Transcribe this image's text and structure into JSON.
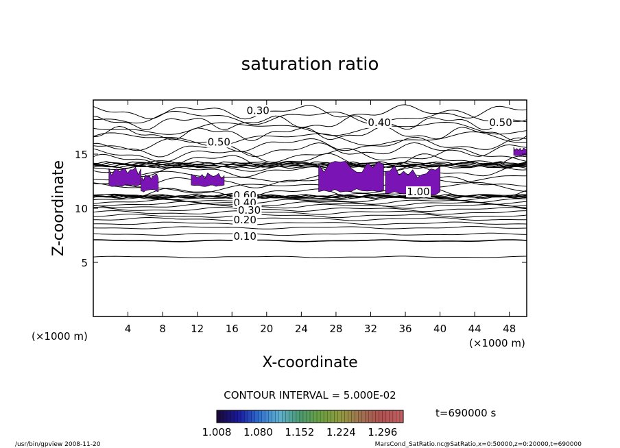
{
  "chart_data": {
    "type": "contour",
    "title": "saturation ratio",
    "xlabel": "X-coordinate",
    "ylabel": "Z-coordinate",
    "x_unit": "(×1000 m)",
    "y_unit": "(×1000 m)",
    "xlim": [
      0,
      50
    ],
    "ylim": [
      0,
      20
    ],
    "x_ticks": [
      4,
      8,
      12,
      16,
      20,
      24,
      28,
      32,
      36,
      40,
      44,
      48
    ],
    "y_ticks": [
      5,
      10,
      15
    ],
    "contour_interval_text": "CONTOUR INTERVAL = 5.000E-02",
    "contour_labels": [
      {
        "text": "0.30",
        "x": 19,
        "z": 18.7
      },
      {
        "text": "0.40",
        "x": 33,
        "z": 17.6
      },
      {
        "text": "0.50",
        "x": 47,
        "z": 17.6
      },
      {
        "text": "0.50",
        "x": 14.5,
        "z": 15.8
      },
      {
        "text": "1.00",
        "x": 37.5,
        "z": 11.2
      },
      {
        "text": "0.60",
        "x": 17.5,
        "z": 10.9
      },
      {
        "text": "0.40",
        "x": 17.5,
        "z": 10.2
      },
      {
        "text": "0.30",
        "x": 18,
        "z": 9.5
      },
      {
        "text": "0.20",
        "x": 17.5,
        "z": 8.6
      },
      {
        "text": "0.10",
        "x": 17.5,
        "z": 7.1
      }
    ],
    "contour_levels_z": [
      5.5,
      7.0,
      7.6,
      8.2,
      8.6,
      9.0,
      9.3,
      9.6,
      9.9,
      10.2,
      10.4,
      10.6,
      10.8,
      11.0,
      11.1
    ],
    "supersaturated_regions": [
      {
        "x_range": [
          1.8,
          5.5
        ],
        "z_range": [
          12.0,
          13.6
        ]
      },
      {
        "x_range": [
          5.5,
          7.5
        ],
        "z_range": [
          11.5,
          13.1
        ]
      },
      {
        "x_range": [
          11.3,
          15.1
        ],
        "z_range": [
          12.0,
          13.1
        ]
      },
      {
        "x_range": [
          26.0,
          33.5
        ],
        "z_range": [
          11.5,
          14.0
        ]
      },
      {
        "x_range": [
          33.7,
          40.0
        ],
        "z_range": [
          11.2,
          13.6
        ]
      },
      {
        "x_range": [
          48.5,
          50.0
        ],
        "z_range": [
          14.8,
          15.6
        ]
      }
    ],
    "colorbar": {
      "tick_labels": [
        "1.008",
        "1.080",
        "1.152",
        "1.224",
        "1.296"
      ],
      "min": 1.008,
      "max": 1.332,
      "colors": [
        "#1a0a3a",
        "#1a1aa0",
        "#2f6fd0",
        "#5fb0d0",
        "#4a9a70",
        "#6aa040",
        "#909a40",
        "#a07050",
        "#b05050",
        "#c06060"
      ]
    },
    "time_label": "t=690000 s",
    "fill_color": "#7a14b4"
  },
  "footer": {
    "left": "/usr/bin/gpview   2008-11-20",
    "right": "MarsCond_SatRatio.nc@SatRatio,x=0:50000,z=0:20000,t=690000"
  }
}
